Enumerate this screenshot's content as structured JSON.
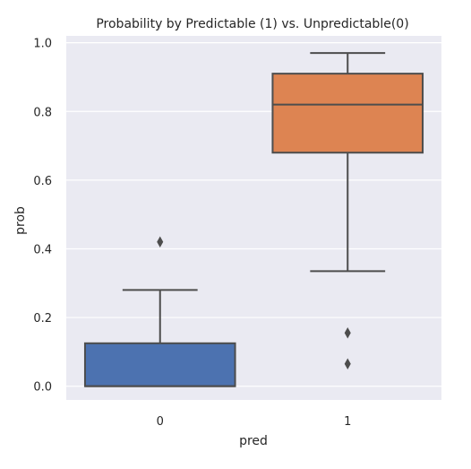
{
  "chart_data": {
    "type": "box",
    "title": "Probability by Predictable (1) vs. Unpredictable(0)",
    "xlabel": "pred",
    "ylabel": "prob",
    "ylim": [
      -0.04,
      1.02
    ],
    "yticks": [
      "0.0",
      "0.2",
      "0.4",
      "0.6",
      "0.8",
      "1.0"
    ],
    "categories": [
      "0",
      "1"
    ],
    "grid": true,
    "colors": {
      "background": "#eaeaf2",
      "grid": "#ffffff",
      "edge": "#4d4d4d",
      "box_0": "#4c72b0",
      "box_1": "#dd8452"
    },
    "boxes": [
      {
        "category": "0",
        "whisker_low": 0.0,
        "q1": 0.0,
        "median": 0.0,
        "q3": 0.125,
        "whisker_high": 0.28,
        "outliers": [
          0.42
        ]
      },
      {
        "category": "1",
        "whisker_low": 0.335,
        "q1": 0.68,
        "median": 0.82,
        "q3": 0.91,
        "whisker_high": 0.97,
        "outliers": [
          0.155,
          0.065
        ]
      }
    ]
  }
}
